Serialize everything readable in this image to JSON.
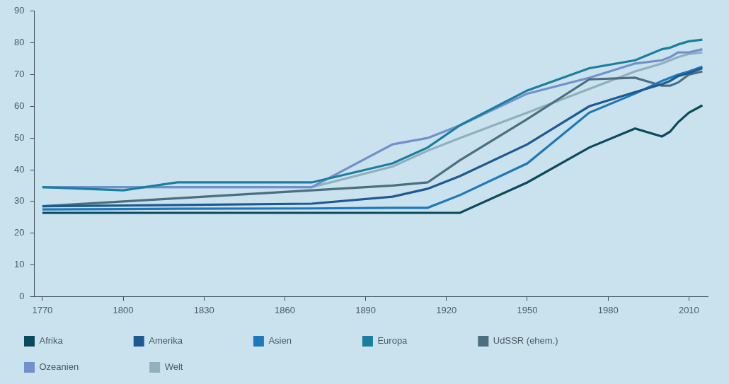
{
  "chart_data": {
    "type": "line",
    "x": [
      1770,
      1800,
      1820,
      1870,
      1900,
      1913,
      1925,
      1950,
      1973,
      1990,
      2000,
      2003,
      2006,
      2010,
      2015
    ],
    "series": [
      {
        "name": "Afrika",
        "color": "#0b4a5c",
        "values": [
          26.4,
          26.4,
          26.4,
          26.4,
          26.4,
          26.4,
          26.4,
          36,
          47,
          53,
          50.5,
          52,
          55,
          58,
          60.3
        ]
      },
      {
        "name": "Amerika",
        "color": "#1d5a91",
        "values": [
          28.5,
          28.7,
          28.9,
          29.3,
          31.5,
          34,
          38,
          48,
          60,
          64.5,
          67,
          68,
          69.5,
          70.5,
          72
        ]
      },
      {
        "name": "Asien",
        "color": "#1f78b8",
        "values": [
          27.5,
          27.6,
          27.7,
          27.8,
          28,
          28,
          32,
          42,
          58,
          64,
          68,
          69,
          70,
          71,
          72.5
        ]
      },
      {
        "name": "Europa",
        "color": "#1a7f9e",
        "values": [
          34.5,
          33.5,
          36,
          36,
          42,
          47,
          54,
          65,
          72,
          74.5,
          78,
          78.5,
          79.5,
          80.5,
          81
        ]
      },
      {
        "name": "UdSSR (ehem.)",
        "color": "#4b6e80",
        "values": [
          28.5,
          30,
          31,
          33.5,
          35,
          36,
          43,
          56,
          68.5,
          69,
          66.5,
          66.5,
          67.5,
          70,
          71
        ]
      },
      {
        "name": "Ozeanien",
        "color": "#7191cc",
        "values": [
          34.5,
          34.5,
          34.5,
          34.5,
          48,
          50,
          54,
          64,
          69,
          73.5,
          74.5,
          75.5,
          77,
          77,
          78
        ]
      },
      {
        "name": "Welt",
        "color": "#8fb0bc",
        "values": [
          34.5,
          34.5,
          34.5,
          34.5,
          41,
          46,
          50,
          58,
          65.5,
          71,
          73.5,
          74.5,
          75.5,
          76.5,
          77
        ]
      }
    ],
    "xlim": [
      1767,
      2017
    ],
    "xticks": [
      1770,
      1800,
      1830,
      1860,
      1890,
      1920,
      1950,
      1980,
      2010
    ],
    "ylim": [
      0,
      90
    ],
    "yticks": [
      0,
      10,
      20,
      30,
      40,
      50,
      60,
      70,
      80,
      90
    ],
    "grid": false,
    "legend": "bottom"
  }
}
